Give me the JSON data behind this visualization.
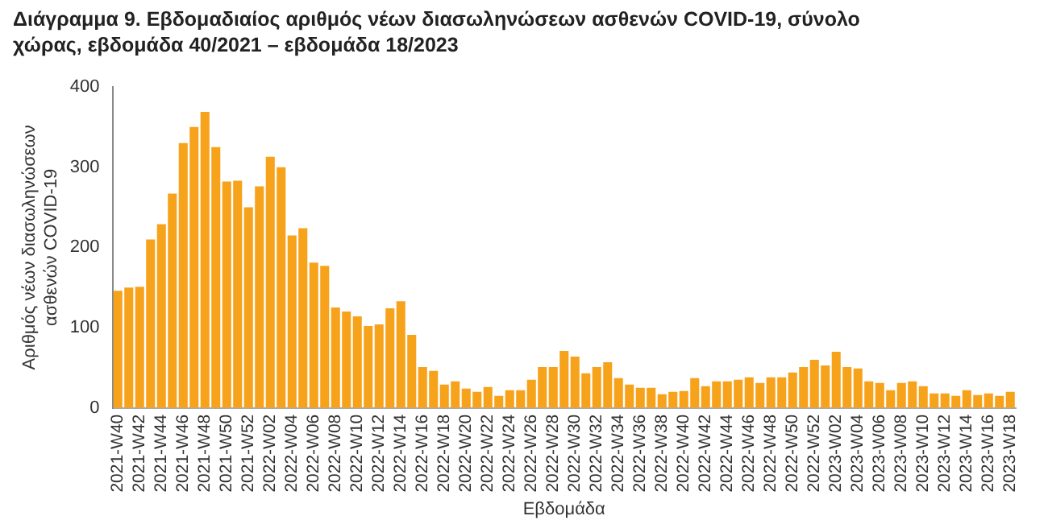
{
  "chart_data": {
    "type": "bar",
    "title": "Διάγραμμα 9. Εβδομαδιαίος αριθμός νέων διασωληνώσεων ασθενών COVID-19, σύνολο χώρας, εβδομάδα 40/2021 – εβδομάδα 18/2023",
    "xlabel": "Εβδομάδα",
    "ylabel": "Αριθμός νέων διασωληνώσεων ασθενών COVID-19",
    "categories": [
      "2021-W40",
      null,
      "2021-W42",
      null,
      "2021-W44",
      null,
      "2021-W46",
      null,
      "2021-W48",
      null,
      "2021-W50",
      null,
      "2021-W52",
      null,
      "2022-W02",
      null,
      "2022-W04",
      null,
      "2022-W06",
      null,
      "2022-W08",
      null,
      "2022-W10",
      null,
      "2022-W12",
      null,
      "2022-W14",
      null,
      "2022-W16",
      null,
      "2022-W18",
      null,
      "2022-W20",
      null,
      "2022-W22",
      null,
      "2022-W24",
      null,
      "2022-W26",
      null,
      "2022-W28",
      null,
      "2022-W30",
      null,
      "2022-W32",
      null,
      "2022-W34",
      null,
      "2022-W36",
      null,
      "2022-W38",
      null,
      "2022-W40",
      null,
      "2022-W42",
      null,
      "2022-W44",
      null,
      "2022-W46",
      null,
      "2022-W48",
      null,
      "2022-W50",
      null,
      "2022-W52",
      null,
      "2023-W02",
      null,
      "2023-W04",
      null,
      "2023-W06",
      null,
      "2023-W08",
      null,
      "2023-W10",
      null,
      "2023-W12",
      null,
      "2023-W14",
      null,
      "2023-W16",
      null,
      "2023-W18"
    ],
    "values": [
      146,
      150,
      151,
      210,
      229,
      267,
      330,
      350,
      369,
      325,
      282,
      283,
      250,
      276,
      313,
      300,
      215,
      224,
      181,
      177,
      125,
      120,
      114,
      102,
      104,
      124,
      133,
      91,
      51,
      46,
      29,
      33,
      24,
      20,
      26,
      15,
      22,
      22,
      35,
      51,
      51,
      71,
      64,
      43,
      51,
      57,
      37,
      29,
      25,
      25,
      17,
      20,
      21,
      37,
      27,
      33,
      33,
      35,
      38,
      31,
      38,
      38,
      44,
      51,
      60,
      53,
      70,
      51,
      49,
      33,
      31,
      22,
      31,
      33,
      27,
      18,
      18,
      15,
      22,
      16,
      18,
      15,
      20
    ],
    "color": "#f7a21b",
    "ylim": [
      0,
      400
    ],
    "yticks": [
      0,
      100,
      200,
      300,
      400
    ],
    "grid": false,
    "legend": false
  }
}
